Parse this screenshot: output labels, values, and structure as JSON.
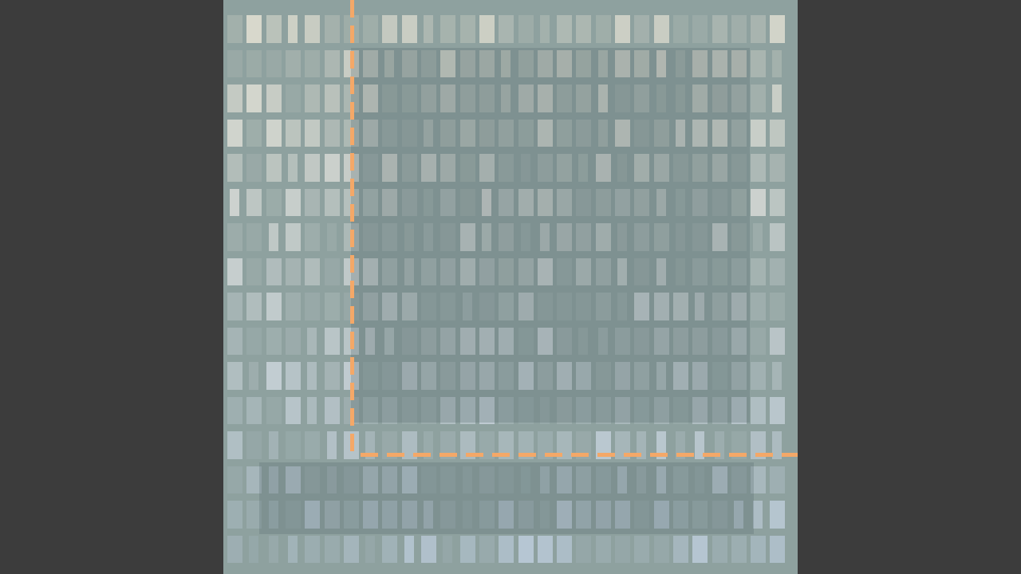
{
  "image": {
    "background_color": "#3c3c3c",
    "panel_color": "#8ea19f",
    "guide_line_color": "#f4a868",
    "guide_line_style": "dashed",
    "grid_rows": 16,
    "grid_columns": 29,
    "top_tint": "#d8d8cc",
    "bottom_tint": "#b8c8d6"
  }
}
